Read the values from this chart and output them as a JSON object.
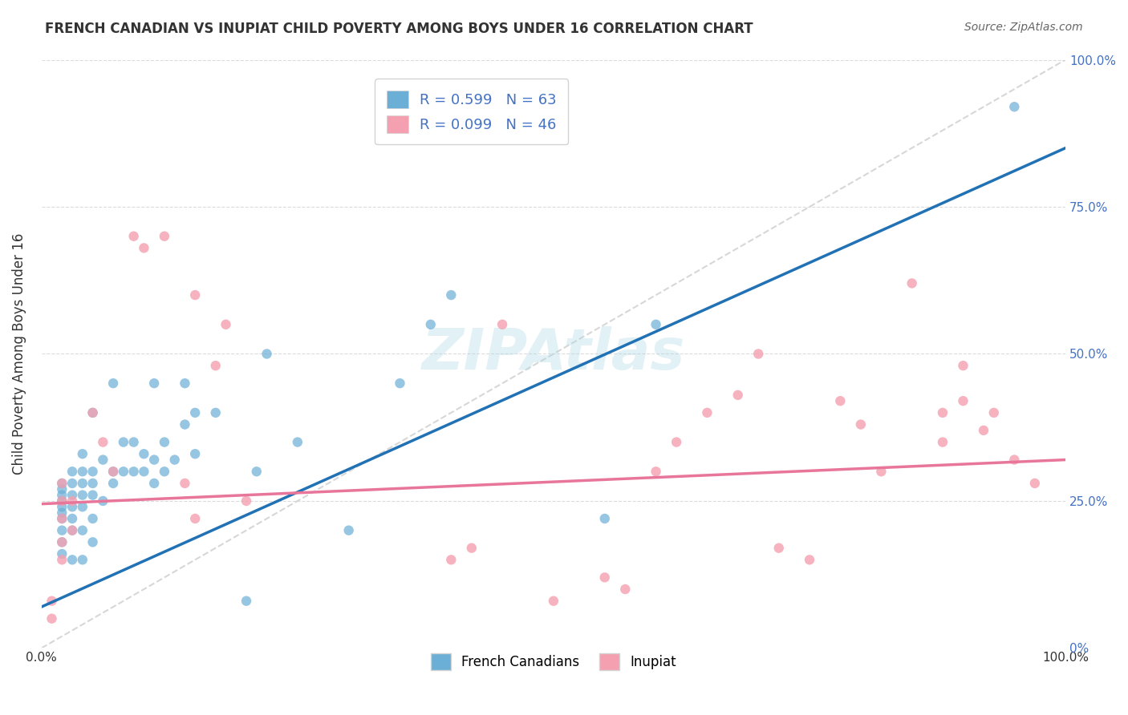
{
  "title": "FRENCH CANADIAN VS INUPIAT CHILD POVERTY AMONG BOYS UNDER 16 CORRELATION CHART",
  "source": "Source: ZipAtlas.com",
  "xlabel": "",
  "ylabel": "Child Poverty Among Boys Under 16",
  "xlim": [
    0,
    1
  ],
  "ylim": [
    0,
    1
  ],
  "xtick_labels": [
    "0.0%",
    "100.0%"
  ],
  "ytick_labels_right": [
    "0%",
    "25.0%",
    "50.0%",
    "75.0%",
    "100.0%"
  ],
  "legend_r1": "R = 0.599",
  "legend_n1": "N = 63",
  "legend_r2": "R = 0.099",
  "legend_n2": "N = 46",
  "color_blue": "#6baed6",
  "color_pink": "#f4a0b0",
  "color_blue_dark": "#2171b5",
  "color_pink_dark": "#e8769a",
  "watermark": "ZIPAtlas",
  "fc_scatter_x": [
    0.02,
    0.02,
    0.02,
    0.02,
    0.02,
    0.02,
    0.02,
    0.02,
    0.02,
    0.02,
    0.03,
    0.03,
    0.03,
    0.03,
    0.03,
    0.03,
    0.03,
    0.04,
    0.04,
    0.04,
    0.04,
    0.04,
    0.04,
    0.04,
    0.05,
    0.05,
    0.05,
    0.05,
    0.05,
    0.05,
    0.06,
    0.06,
    0.07,
    0.07,
    0.07,
    0.08,
    0.08,
    0.09,
    0.09,
    0.1,
    0.1,
    0.11,
    0.11,
    0.11,
    0.12,
    0.12,
    0.13,
    0.14,
    0.14,
    0.15,
    0.15,
    0.17,
    0.2,
    0.21,
    0.22,
    0.25,
    0.3,
    0.35,
    0.38,
    0.4,
    0.55,
    0.6,
    0.95
  ],
  "fc_scatter_y": [
    0.16,
    0.18,
    0.2,
    0.22,
    0.23,
    0.24,
    0.25,
    0.26,
    0.27,
    0.28,
    0.15,
    0.2,
    0.22,
    0.24,
    0.26,
    0.28,
    0.3,
    0.15,
    0.2,
    0.24,
    0.26,
    0.28,
    0.3,
    0.33,
    0.18,
    0.22,
    0.26,
    0.28,
    0.3,
    0.4,
    0.25,
    0.32,
    0.28,
    0.3,
    0.45,
    0.3,
    0.35,
    0.3,
    0.35,
    0.3,
    0.33,
    0.28,
    0.32,
    0.45,
    0.3,
    0.35,
    0.32,
    0.38,
    0.45,
    0.33,
    0.4,
    0.4,
    0.08,
    0.3,
    0.5,
    0.35,
    0.2,
    0.45,
    0.55,
    0.6,
    0.22,
    0.55,
    0.92
  ],
  "inupiat_scatter_x": [
    0.01,
    0.01,
    0.02,
    0.02,
    0.02,
    0.02,
    0.02,
    0.03,
    0.03,
    0.05,
    0.06,
    0.07,
    0.09,
    0.1,
    0.12,
    0.14,
    0.15,
    0.15,
    0.17,
    0.18,
    0.2,
    0.4,
    0.42,
    0.45,
    0.5,
    0.55,
    0.57,
    0.6,
    0.62,
    0.65,
    0.68,
    0.7,
    0.72,
    0.75,
    0.78,
    0.8,
    0.82,
    0.85,
    0.88,
    0.88,
    0.9,
    0.9,
    0.92,
    0.93,
    0.95,
    0.97
  ],
  "inupiat_scatter_y": [
    0.05,
    0.08,
    0.15,
    0.18,
    0.22,
    0.25,
    0.28,
    0.2,
    0.25,
    0.4,
    0.35,
    0.3,
    0.7,
    0.68,
    0.7,
    0.28,
    0.6,
    0.22,
    0.48,
    0.55,
    0.25,
    0.15,
    0.17,
    0.55,
    0.08,
    0.12,
    0.1,
    0.3,
    0.35,
    0.4,
    0.43,
    0.5,
    0.17,
    0.15,
    0.42,
    0.38,
    0.3,
    0.62,
    0.35,
    0.4,
    0.48,
    0.42,
    0.37,
    0.4,
    0.32,
    0.28
  ],
  "fc_trendline_x": [
    0,
    1.0
  ],
  "fc_trendline_y": [
    0.07,
    0.85
  ],
  "inupiat_trendline_x": [
    0,
    1.0
  ],
  "inupiat_trendline_y": [
    0.245,
    0.32
  ],
  "diag_line_x": [
    0,
    1.0
  ],
  "diag_line_y": [
    0,
    1.0
  ]
}
